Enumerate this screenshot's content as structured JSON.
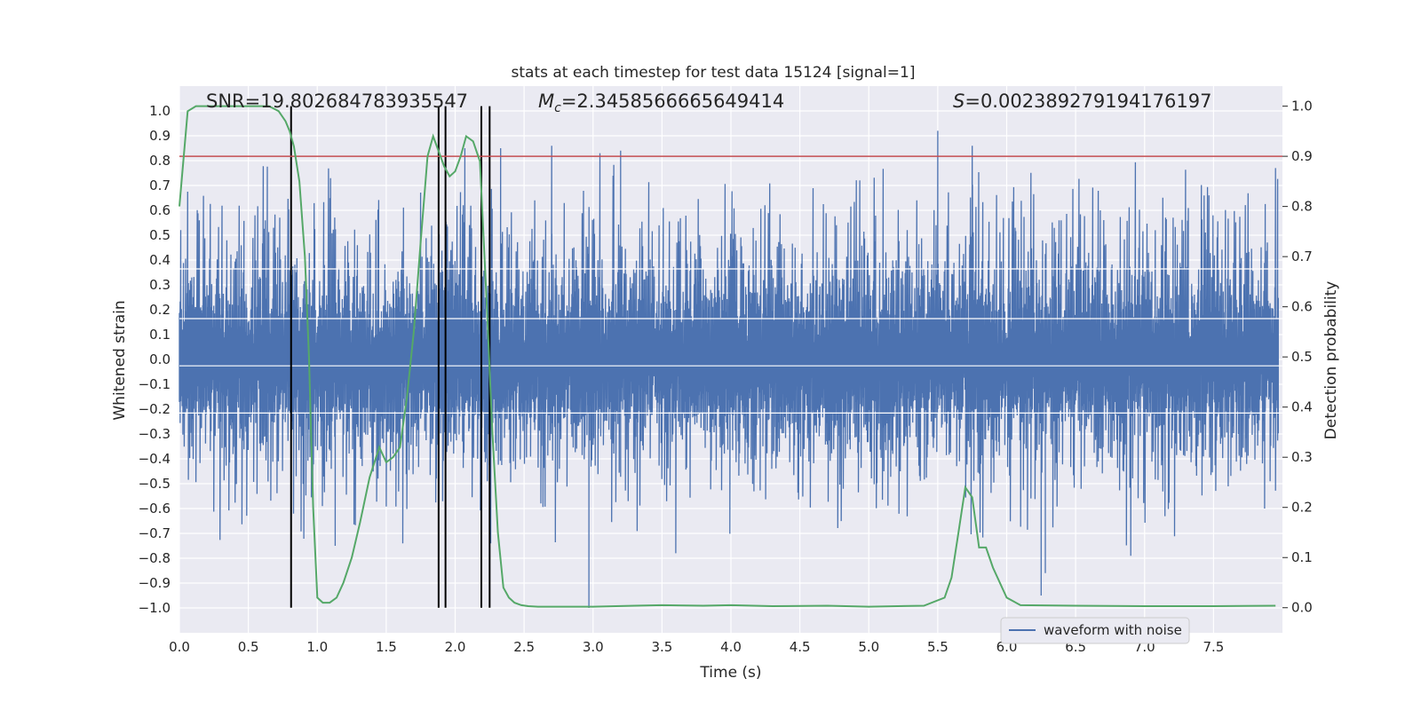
{
  "chart_data": {
    "type": "line",
    "title": "stats at each timestep for test data 15124 [signal=1]",
    "xlabel": "Time (s)",
    "ylabel": "Whitened strain",
    "y2label": "Detection probability",
    "xlim": [
      0.0,
      8.0
    ],
    "ylim": [
      -1.1,
      1.1
    ],
    "y2lim": [
      -0.05,
      1.04
    ],
    "grid": true,
    "legend_position": "bottom-right",
    "x_ticks": [
      "0.0",
      "0.5",
      "1.0",
      "1.5",
      "2.0",
      "2.5",
      "3.0",
      "3.5",
      "4.0",
      "4.5",
      "5.0",
      "5.5",
      "6.0",
      "6.5",
      "7.0",
      "7.5"
    ],
    "y_ticks": [
      "1.0",
      "0.9",
      "0.8",
      "0.7",
      "0.6",
      "0.5",
      "0.4",
      "0.3",
      "0.2",
      "0.1",
      "0.0",
      "-0.1",
      "-0.2",
      "-0.3",
      "-0.4",
      "-0.5",
      "-0.6",
      "-0.7",
      "-0.8",
      "-0.9",
      "-1.0"
    ],
    "y2_ticks": [
      "1.0",
      "0.9",
      "0.8",
      "0.7",
      "0.6",
      "0.5",
      "0.4",
      "0.3",
      "0.2",
      "0.1",
      "0.0"
    ],
    "annotations": {
      "snr": "SNR=19.802684783935547",
      "mc_symbol": "M",
      "mc_sub": "c",
      "mc_value": "=2.3458566665649414",
      "s_symbol": "S",
      "s_value": "=0.002389279194176197"
    },
    "series": [
      {
        "name": "waveform with noise",
        "color": "#4c72b0",
        "kind": "noise_waveform",
        "envelope_typical": [
          -0.4,
          0.45
        ],
        "peaks": [
          {
            "x": 2.07,
            "y": 0.85
          },
          {
            "x": 2.33,
            "y": 0.85
          },
          {
            "x": 2.7,
            "y": 0.86
          },
          {
            "x": 3.05,
            "y": 0.83
          },
          {
            "x": 3.2,
            "y": 0.84
          },
          {
            "x": 5.5,
            "y": 0.92
          },
          {
            "x": 5.75,
            "y": 0.86
          },
          {
            "x": 7.95,
            "y": 0.77
          }
        ],
        "troughs": [
          {
            "x": 2.97,
            "y": -1.0
          },
          {
            "x": 6.25,
            "y": -0.95
          },
          {
            "x": 6.28,
            "y": -0.86
          },
          {
            "x": 1.13,
            "y": -0.75
          },
          {
            "x": 3.6,
            "y": -0.78
          },
          {
            "x": 6.9,
            "y": -0.79
          }
        ]
      },
      {
        "kind": "detection_probability",
        "color": "#55a868",
        "axis": "right",
        "x": [
          0.0,
          0.06,
          0.12,
          0.3,
          0.5,
          0.65,
          0.72,
          0.77,
          0.8,
          0.83,
          0.87,
          0.91,
          0.94,
          0.97,
          1.0,
          1.04,
          1.09,
          1.14,
          1.19,
          1.25,
          1.31,
          1.38,
          1.45,
          1.5,
          1.55,
          1.6,
          1.65,
          1.7,
          1.75,
          1.8,
          1.84,
          1.88,
          1.92,
          1.96,
          2.0,
          2.04,
          2.08,
          2.13,
          2.18,
          2.23,
          2.27,
          2.31,
          2.35,
          2.39,
          2.43,
          2.48,
          2.53,
          2.6,
          2.7,
          2.85,
          3.0,
          3.3,
          3.5,
          3.8,
          4.0,
          4.3,
          4.7,
          5.0,
          5.4,
          5.55,
          5.6,
          5.65,
          5.7,
          5.75,
          5.8,
          5.85,
          5.9,
          6.0,
          6.1,
          6.5,
          7.0,
          7.5,
          7.95
        ],
        "y": [
          0.8,
          0.99,
          1.0,
          1.0,
          1.0,
          1.0,
          0.99,
          0.97,
          0.95,
          0.92,
          0.85,
          0.7,
          0.5,
          0.2,
          0.02,
          0.01,
          0.01,
          0.02,
          0.05,
          0.1,
          0.17,
          0.26,
          0.32,
          0.29,
          0.3,
          0.32,
          0.42,
          0.55,
          0.73,
          0.9,
          0.94,
          0.91,
          0.88,
          0.86,
          0.87,
          0.9,
          0.94,
          0.93,
          0.89,
          0.6,
          0.35,
          0.15,
          0.04,
          0.02,
          0.01,
          0.005,
          0.003,
          0.002,
          0.002,
          0.002,
          0.002,
          0.004,
          0.005,
          0.004,
          0.005,
          0.003,
          0.004,
          0.002,
          0.004,
          0.02,
          0.06,
          0.15,
          0.24,
          0.22,
          0.12,
          0.12,
          0.08,
          0.02,
          0.005,
          0.004,
          0.003,
          0.003,
          0.004
        ]
      }
    ],
    "threshold_line": {
      "color": "#c44e52",
      "axis": "right",
      "value": 0.9
    },
    "event_lines_x": [
      0.81,
      1.88,
      1.93,
      2.19,
      2.25
    ],
    "event_line_color": "#000000",
    "legend": [
      {
        "label": "waveform with noise",
        "color": "#4c72b0"
      }
    ]
  }
}
